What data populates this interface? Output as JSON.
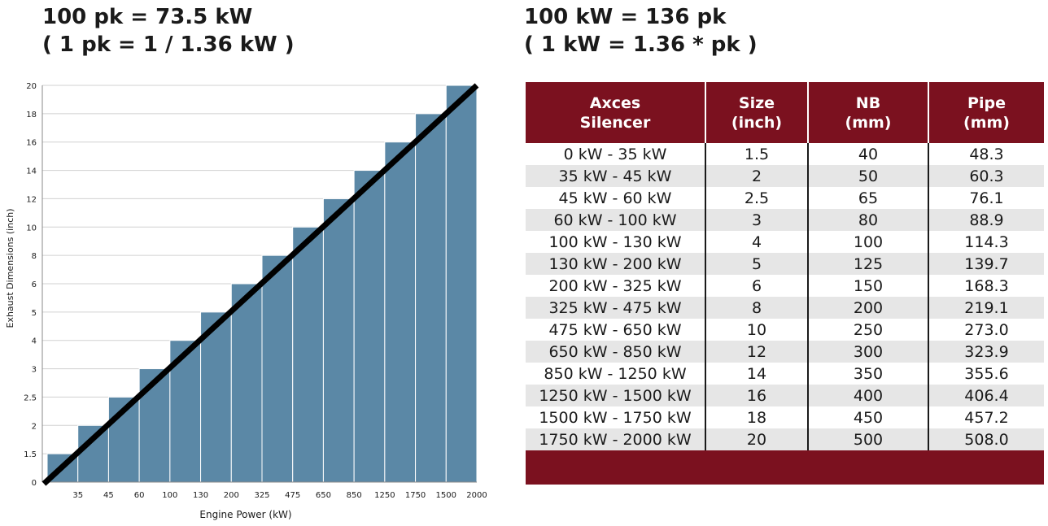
{
  "left_heading": {
    "line1": "100 pk = 73.5 kW",
    "line2": "( 1 pk = 1 / 1.36 kW )"
  },
  "right_heading": {
    "line1": "100 kW = 136 pk",
    "line2": "( 1 kW = 1.36 * pk )"
  },
  "colors": {
    "bar": "#5b88a6",
    "bar_edge": "#ffffff",
    "line": "#000000",
    "header_bg": "#7b111f",
    "row_alt": "#e6e6e6"
  },
  "chart_data": {
    "type": "bar",
    "title": "",
    "xlabel": "Engine Power (kW)",
    "ylabel": "Exhaust Dimensions (inch)",
    "x_tick_labels": [
      "35",
      "45",
      "60",
      "100",
      "130",
      "200",
      "325",
      "475",
      "650",
      "850",
      "1250",
      "1750",
      "1500",
      "2000"
    ],
    "y_tick_labels": [
      "0",
      "1.5",
      "2",
      "2.5",
      "3",
      "4",
      "5",
      "6",
      "8",
      "10",
      "12",
      "14",
      "16",
      "18",
      "20"
    ],
    "values": [
      "1.5",
      "2",
      "2.5",
      "3",
      "4",
      "5",
      "6",
      "8",
      "10",
      "12",
      "14",
      "16",
      "18",
      "20"
    ],
    "trend_line": {
      "type": "line",
      "description": "diagonal reference line from origin to top-right"
    },
    "grid": "horizontal"
  },
  "table": {
    "headers": [
      {
        "line1": "Axces",
        "line2": "Silencer"
      },
      {
        "line1": "Size",
        "line2": "(inch)"
      },
      {
        "line1": "NB",
        "line2": "(mm)"
      },
      {
        "line1": "Pipe",
        "line2": "(mm)"
      }
    ],
    "rows": [
      [
        "0 kW - 35 kW",
        "1.5",
        "40",
        "48.3"
      ],
      [
        "35 kW - 45 kW",
        "2",
        "50",
        "60.3"
      ],
      [
        "45 kW - 60 kW",
        "2.5",
        "65",
        "76.1"
      ],
      [
        "60 kW - 100 kW",
        "3",
        "80",
        "88.9"
      ],
      [
        "100 kW - 130 kW",
        "4",
        "100",
        "114.3"
      ],
      [
        "130 kW - 200 kW",
        "5",
        "125",
        "139.7"
      ],
      [
        "200 kW - 325 kW",
        "6",
        "150",
        "168.3"
      ],
      [
        "325 kW - 475 kW",
        "8",
        "200",
        "219.1"
      ],
      [
        "475 kW - 650 kW",
        "10",
        "250",
        "273.0"
      ],
      [
        "650 kW - 850 kW",
        "12",
        "300",
        "323.9"
      ],
      [
        "850 kW - 1250 kW",
        "14",
        "350",
        "355.6"
      ],
      [
        "1250 kW - 1500 kW",
        "16",
        "400",
        "406.4"
      ],
      [
        "1500 kW - 1750 kW",
        "18",
        "450",
        "457.2"
      ],
      [
        "1750 kW - 2000 kW",
        "20",
        "500",
        "508.0"
      ]
    ]
  }
}
